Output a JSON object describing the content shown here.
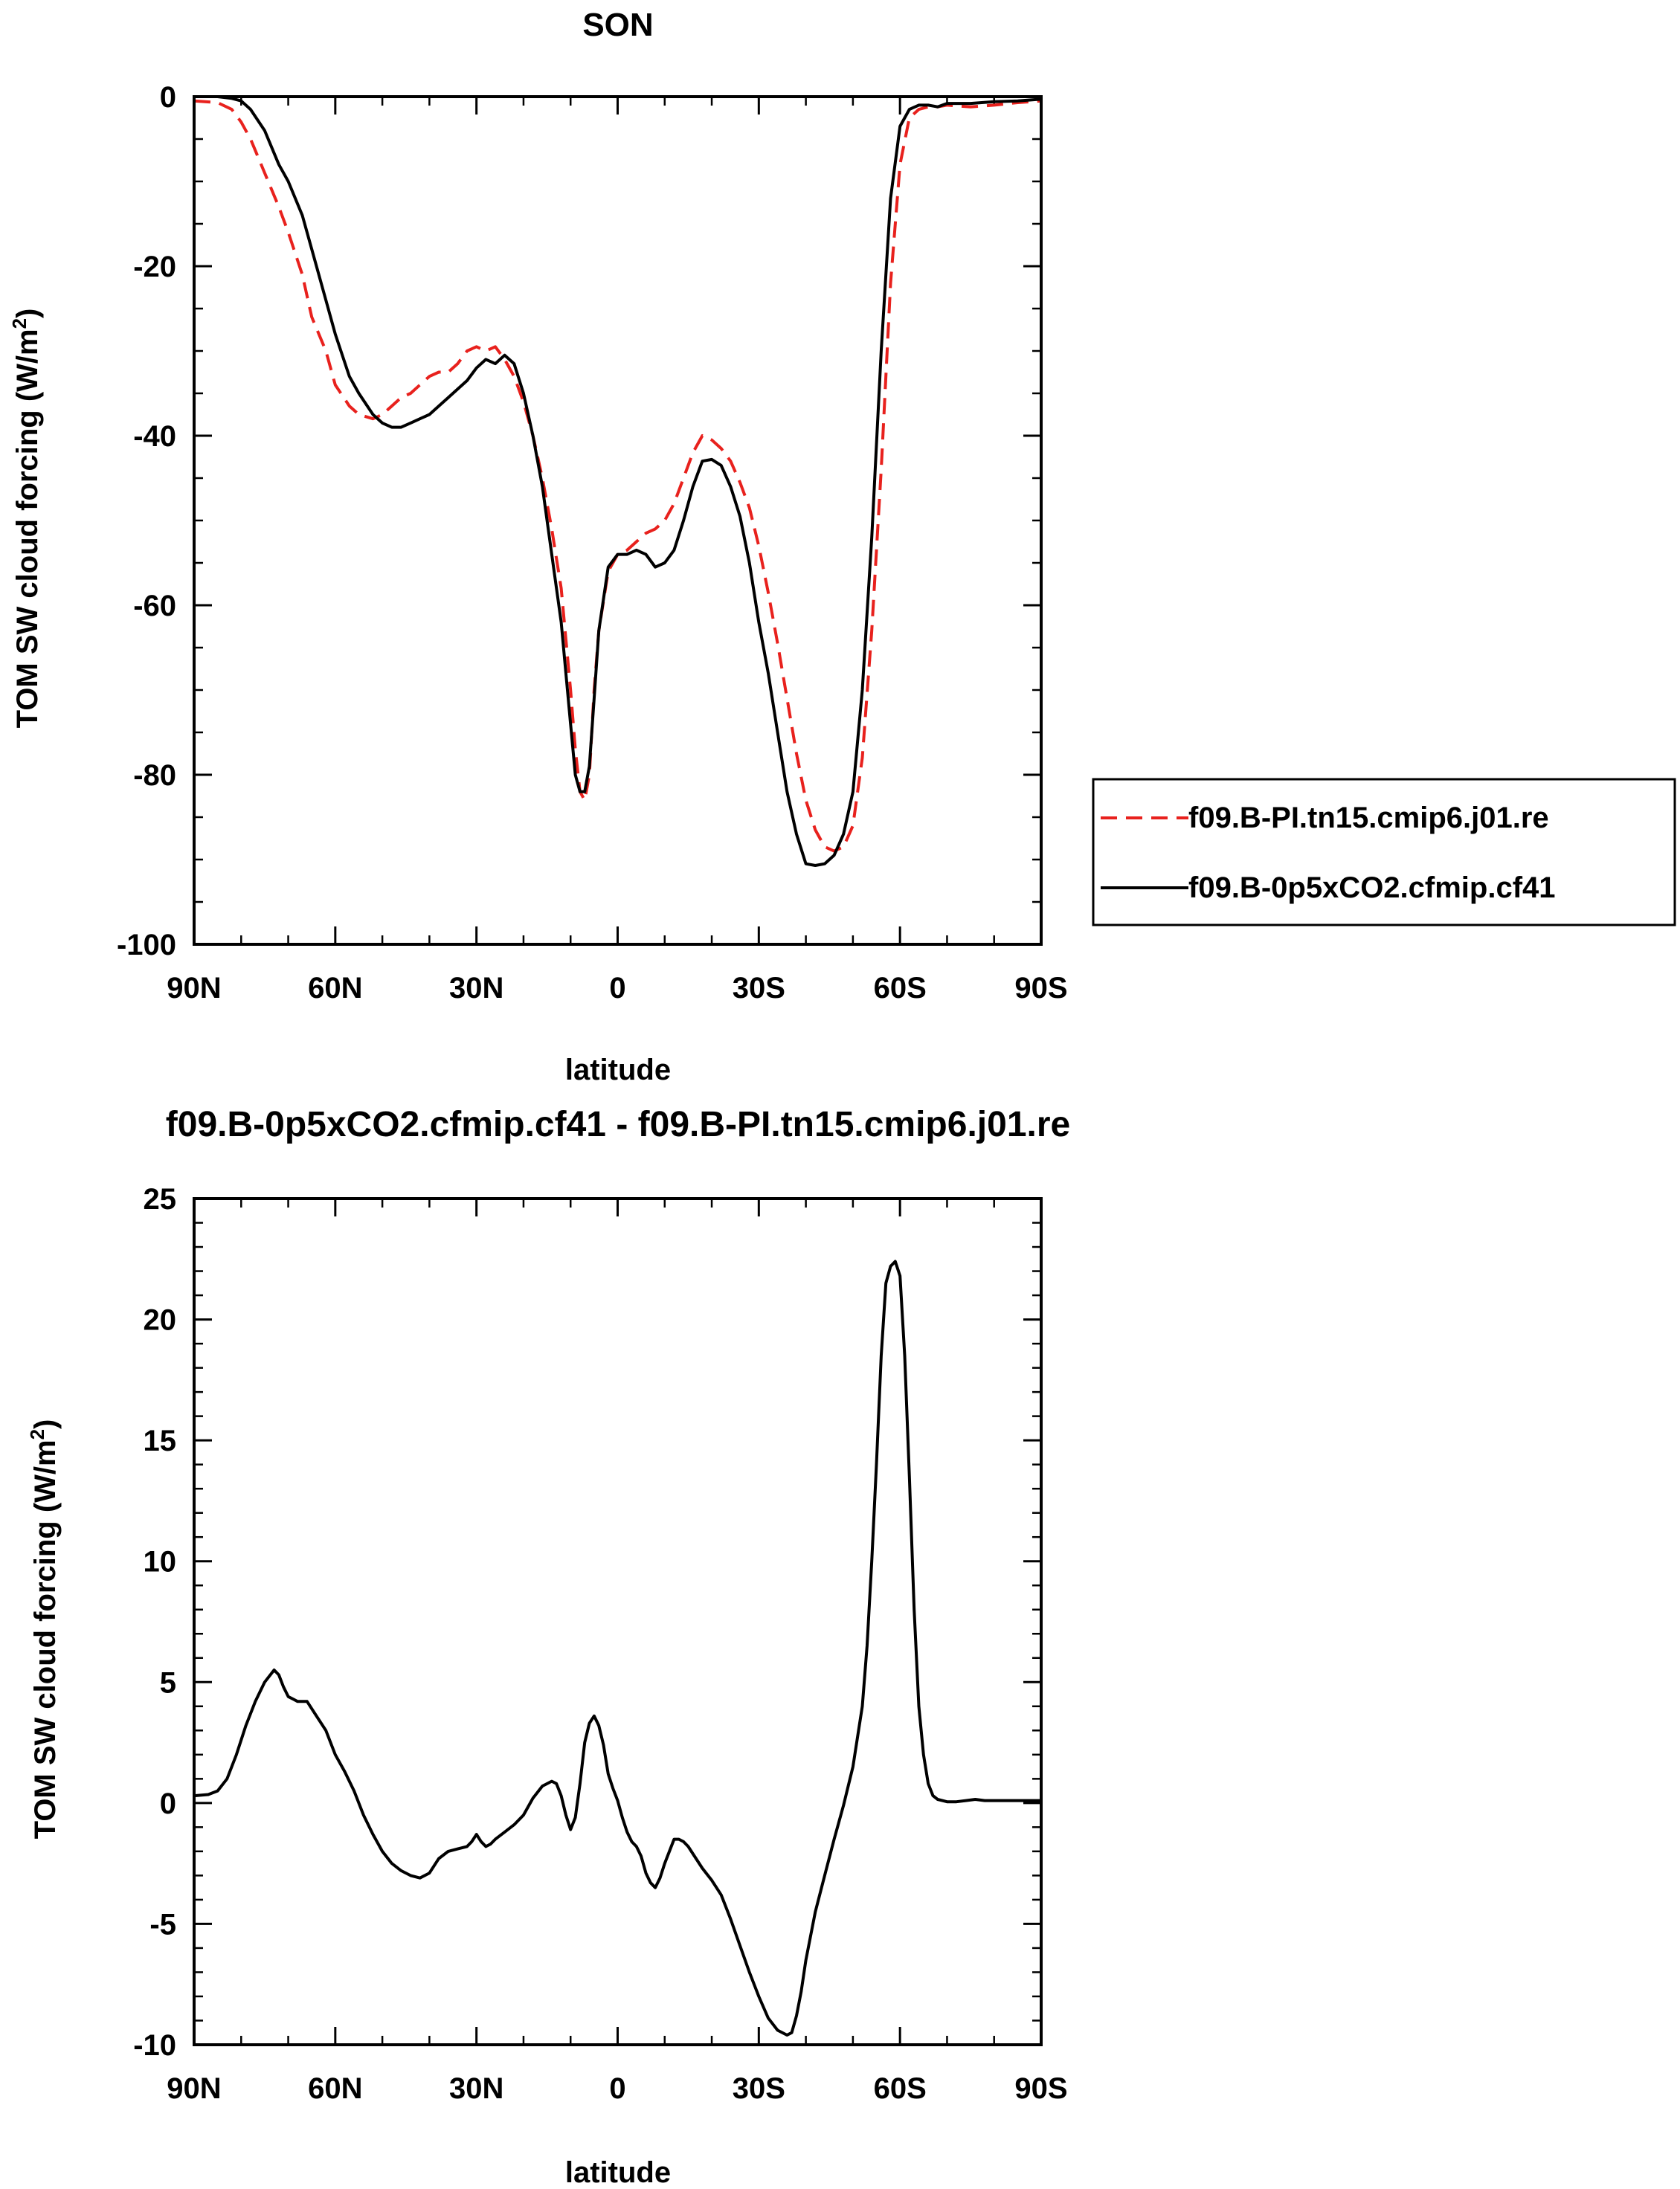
{
  "chart_data": [
    {
      "type": "line",
      "title": "SON",
      "xlabel": "latitude",
      "ylabel_main": "TOM SW cloud forcing (W/m",
      "ylabel_sup": "2",
      "ylabel_close": ")",
      "xlim": [
        90,
        -90
      ],
      "ylim": [
        -100,
        0
      ],
      "x_ticks": [
        90,
        60,
        30,
        0,
        -30,
        -60,
        -90
      ],
      "x_tick_labels": [
        "90N",
        "60N",
        "30N",
        "0",
        "30S",
        "60S",
        "90S"
      ],
      "y_ticks": [
        0,
        -20,
        -40,
        -60,
        -80,
        -100
      ],
      "y_tick_labels": [
        "0",
        "-20",
        "-40",
        "-60",
        "-80",
        "-100"
      ],
      "grid": false,
      "legend_position": "right",
      "series": [
        {
          "name": "f09.B-PI.tn15.cmip6.j01.re",
          "color": "#e8211d",
          "dash": "dashed",
          "x": [
            90,
            85,
            82,
            80,
            78,
            75,
            72,
            70,
            67,
            65,
            62,
            60,
            57,
            55,
            52,
            50,
            48,
            46,
            44,
            42,
            40,
            38,
            36,
            34,
            32,
            30,
            28,
            26,
            24,
            22,
            20,
            18,
            16,
            14,
            12,
            10,
            9,
            8,
            7,
            6,
            5,
            4,
            2,
            0,
            -2,
            -4,
            -6,
            -8,
            -10,
            -12,
            -14,
            -16,
            -18,
            -20,
            -22,
            -24,
            -26,
            -28,
            -30,
            -32,
            -34,
            -36,
            -38,
            -40,
            -42,
            -44,
            -46,
            -48,
            -50,
            -52,
            -54,
            -56,
            -58,
            -60,
            -62,
            -64,
            -66,
            -68,
            -70,
            -75,
            -80,
            -85,
            -90
          ],
          "y": [
            -0.5,
            -0.7,
            -1.5,
            -3,
            -5,
            -9,
            -13,
            -16,
            -21,
            -26,
            -30,
            -34,
            -36.5,
            -37.5,
            -38,
            -37.5,
            -36.5,
            -35.5,
            -35,
            -34,
            -33,
            -32.5,
            -32.5,
            -31.5,
            -30,
            -29.5,
            -30,
            -29.5,
            -31,
            -33,
            -36,
            -40,
            -45,
            -51,
            -58,
            -70,
            -77,
            -82,
            -83,
            -80,
            -70,
            -63,
            -56,
            -54,
            -53.5,
            -52.5,
            -51.5,
            -51,
            -50,
            -48,
            -45,
            -42,
            -40,
            -40.5,
            -41.5,
            -43,
            -45.5,
            -48.5,
            -53,
            -58.5,
            -64.5,
            -71,
            -77.5,
            -83,
            -86.5,
            -88.5,
            -89,
            -88.5,
            -86,
            -78,
            -63,
            -44,
            -22,
            -8,
            -2.5,
            -1.5,
            -1.2,
            -1.2,
            -1,
            -1.2,
            -1,
            -0.7,
            -0.5
          ]
        },
        {
          "name": "f09.B-0p5xCO2.cfmip.cf41",
          "color": "#000000",
          "dash": "solid",
          "x": [
            90,
            85,
            82,
            80,
            78,
            75,
            72,
            70,
            67,
            65,
            62,
            60,
            57,
            55,
            52,
            50,
            48,
            46,
            44,
            42,
            40,
            38,
            36,
            34,
            32,
            30,
            28,
            26,
            24,
            22,
            20,
            18,
            16,
            14,
            12,
            10,
            9,
            8,
            7,
            6,
            5,
            4,
            2,
            0,
            -2,
            -4,
            -6,
            -8,
            -10,
            -12,
            -14,
            -16,
            -18,
            -20,
            -22,
            -24,
            -26,
            -28,
            -30,
            -32,
            -34,
            -36,
            -38,
            -40,
            -42,
            -44,
            -46,
            -48,
            -50,
            -52,
            -54,
            -56,
            -58,
            -60,
            -62,
            -64,
            -66,
            -68,
            -70,
            -75,
            -80,
            -85,
            -90
          ],
          "y": [
            0,
            0,
            -0.2,
            -0.5,
            -1.5,
            -4,
            -8,
            -10,
            -14,
            -18,
            -24,
            -28,
            -33,
            -35,
            -37.5,
            -38.5,
            -39,
            -39,
            -38.5,
            -38,
            -37.5,
            -36.5,
            -35.5,
            -34.5,
            -33.5,
            -32,
            -31,
            -31.5,
            -30.5,
            -31.5,
            -35,
            -40,
            -46,
            -54,
            -62,
            -74,
            -80,
            -82,
            -82,
            -79,
            -71,
            -63,
            -55.5,
            -54,
            -54,
            -53.5,
            -54,
            -55.5,
            -55,
            -53.5,
            -50,
            -46,
            -43,
            -42.8,
            -43.5,
            -46,
            -49.5,
            -55,
            -62,
            -68,
            -75,
            -82,
            -87,
            -90.5,
            -90.7,
            -90.5,
            -89.5,
            -87,
            -82,
            -70,
            -52,
            -30,
            -12,
            -3.5,
            -1.5,
            -1,
            -1,
            -1.2,
            -0.8,
            -0.8,
            -0.6,
            -0.5,
            -0.3
          ]
        }
      ]
    },
    {
      "type": "line",
      "title": "f09.B-0p5xCO2.cfmip.cf41 - f09.B-PI.tn15.cmip6.j01.re",
      "xlabel": "latitude",
      "ylabel_main": "TOM SW cloud forcing (W/m",
      "ylabel_sup": "2",
      "ylabel_close": ")",
      "xlim": [
        90,
        -90
      ],
      "ylim": [
        -10,
        25
      ],
      "x_ticks": [
        90,
        60,
        30,
        0,
        -30,
        -60,
        -90
      ],
      "x_tick_labels": [
        "90N",
        "60N",
        "30N",
        "0",
        "30S",
        "60S",
        "90S"
      ],
      "y_ticks": [
        25,
        20,
        15,
        10,
        5,
        0,
        -5,
        -10
      ],
      "y_tick_labels": [
        "25",
        "20",
        "15",
        "10",
        "5",
        "0",
        "-5",
        "-10"
      ],
      "grid": false,
      "series": [
        {
          "color": "#000000",
          "dash": "solid",
          "x": [
            90,
            87,
            85,
            83,
            81,
            79,
            77,
            75,
            73,
            72,
            71,
            70,
            69,
            68,
            67,
            66,
            64,
            62,
            60,
            58,
            56,
            54,
            52,
            50,
            48,
            46,
            44,
            42,
            40,
            38,
            36,
            34,
            32,
            31,
            30,
            29,
            28,
            27,
            26,
            24,
            22,
            20,
            18,
            16,
            14,
            13,
            12,
            11,
            10,
            9,
            8,
            7,
            6,
            5,
            4,
            3,
            2,
            1,
            0,
            -1,
            -2,
            -3,
            -4,
            -5,
            -6,
            -7,
            -8,
            -9,
            -10,
            -11,
            -12,
            -13,
            -14,
            -15,
            -16,
            -18,
            -20,
            -22,
            -24,
            -26,
            -28,
            -30,
            -32,
            -34,
            -36,
            -37,
            -38,
            -39,
            -40,
            -42,
            -44,
            -46,
            -48,
            -50,
            -52,
            -53,
            -54,
            -55,
            -56,
            -57,
            -58,
            -59,
            -60,
            -61,
            -62,
            -63,
            -64,
            -65,
            -66,
            -67,
            -68,
            -70,
            -72,
            -74,
            -76,
            -78,
            -80,
            -85,
            -90
          ],
          "y": [
            0.3,
            0.35,
            0.5,
            1.0,
            2.0,
            3.2,
            4.2,
            5.0,
            5.5,
            5.3,
            4.8,
            4.4,
            4.3,
            4.2,
            4.2,
            4.2,
            3.6,
            3.0,
            2.0,
            1.3,
            0.5,
            -0.5,
            -1.3,
            -2.0,
            -2.5,
            -2.8,
            -3.0,
            -3.1,
            -2.9,
            -2.3,
            -2.0,
            -1.9,
            -1.8,
            -1.6,
            -1.3,
            -1.6,
            -1.8,
            -1.7,
            -1.5,
            -1.2,
            -0.9,
            -0.5,
            0.2,
            0.7,
            0.9,
            0.8,
            0.3,
            -0.5,
            -1.1,
            -0.6,
            0.8,
            2.5,
            3.3,
            3.6,
            3.2,
            2.4,
            1.2,
            0.6,
            0.1,
            -0.6,
            -1.2,
            -1.6,
            -1.8,
            -2.2,
            -2.9,
            -3.3,
            -3.5,
            -3.1,
            -2.5,
            -2.0,
            -1.5,
            -1.5,
            -1.6,
            -1.8,
            -2.1,
            -2.7,
            -3.2,
            -3.8,
            -4.8,
            -5.9,
            -7.0,
            -8.0,
            -8.9,
            -9.4,
            -9.6,
            -9.5,
            -8.8,
            -7.8,
            -6.5,
            -4.5,
            -3.0,
            -1.5,
            -0.1,
            1.5,
            4.0,
            6.5,
            10.0,
            14.0,
            18.5,
            21.5,
            22.2,
            22.4,
            21.8,
            18.5,
            13.5,
            8.0,
            4.0,
            2.0,
            0.8,
            0.3,
            0.15,
            0.05,
            0.05,
            0.1,
            0.15,
            0.1,
            0.1,
            0.1,
            0.1
          ]
        }
      ]
    }
  ]
}
